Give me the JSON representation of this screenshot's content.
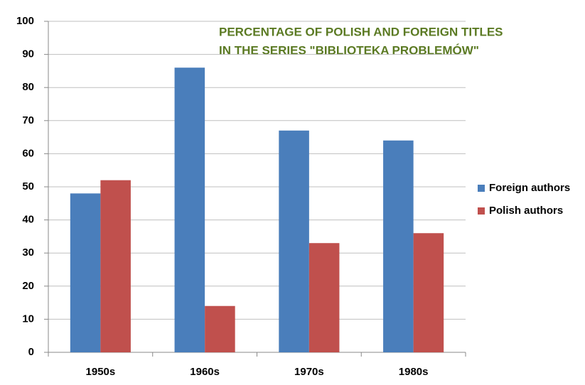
{
  "chart_data": {
    "type": "bar",
    "title": [
      "PERCENTAGE OF POLISH AND FOREIGN TITLES",
      "IN THE SERIES \"BIBLIOTEKA PROBLEMÓW\""
    ],
    "categories": [
      "1950s",
      "1960s",
      "1970s",
      "1980s"
    ],
    "series": [
      {
        "name": "Foreign authors",
        "color": "#4a7ebb",
        "values": [
          48,
          86,
          67,
          64
        ]
      },
      {
        "name": "Polish authors",
        "color": "#c0504d",
        "values": [
          52,
          14,
          33,
          36
        ]
      }
    ],
    "ylim": [
      0,
      100
    ],
    "yticks": [
      0,
      10,
      20,
      30,
      40,
      50,
      60,
      70,
      80,
      90,
      100
    ],
    "grid": true,
    "legend": "right"
  }
}
